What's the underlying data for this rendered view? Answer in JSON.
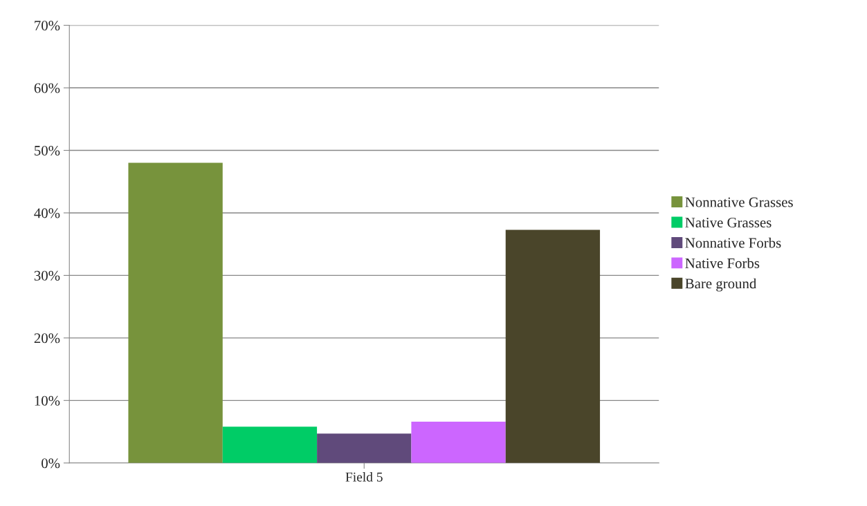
{
  "chart_data": {
    "type": "bar",
    "categories": [
      "Field 5"
    ],
    "series": [
      {
        "name": "Nonnative Grasses",
        "color": "#77933c",
        "values": [
          48
        ]
      },
      {
        "name": "Native Grasses",
        "color": "#00cc66",
        "values": [
          5.8
        ]
      },
      {
        "name": "Nonnative Forbs",
        "color": "#604a7b",
        "values": [
          4.7
        ]
      },
      {
        "name": "Native Forbs",
        "color": "#cc66ff",
        "values": [
          6.6
        ]
      },
      {
        "name": "Bare ground",
        "color": "#4a452a",
        "values": [
          37.3
        ]
      }
    ],
    "ylim": [
      0,
      70
    ],
    "yticks": [
      {
        "value": 0,
        "label": "0%"
      },
      {
        "value": 10,
        "label": "10%"
      },
      {
        "value": 20,
        "label": "20%"
      },
      {
        "value": 30,
        "label": "30%"
      },
      {
        "value": 40,
        "label": "40%"
      },
      {
        "value": 50,
        "label": "50%"
      },
      {
        "value": 60,
        "label": "60%"
      },
      {
        "value": 70,
        "label": "70%"
      }
    ],
    "grid": "y",
    "legend": "right"
  }
}
